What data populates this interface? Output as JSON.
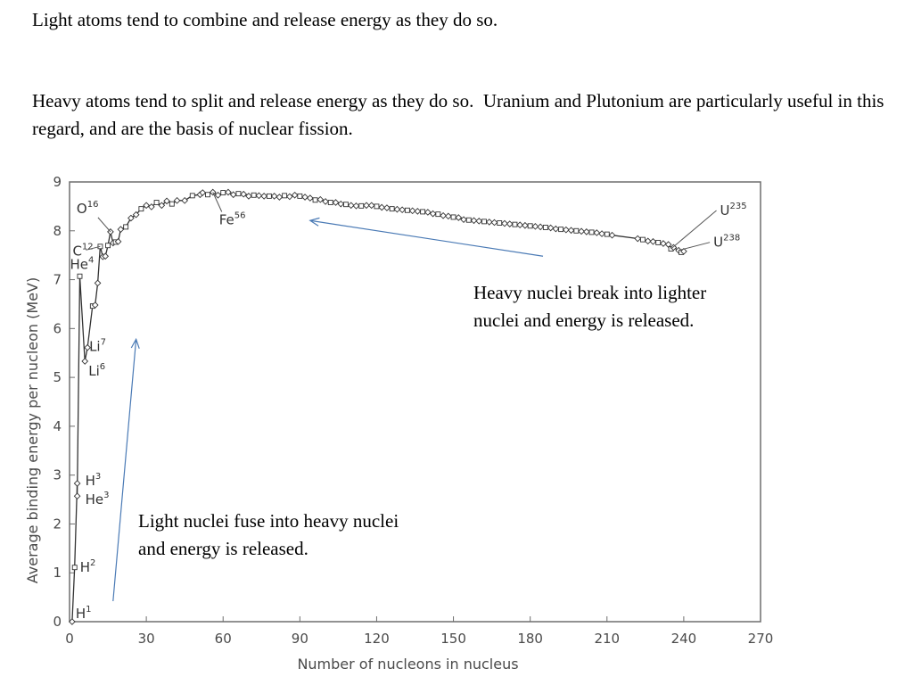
{
  "text": {
    "intro_light": "Light atoms tend to combine and release energy as they do so.",
    "intro_heavy": "Heavy atoms tend to split and release energy as they do so.  Uranium and Plutonium are particularly useful in this regard, and are the basis of nuclear fission.",
    "annotation_heavy": "Heavy nuclei break into lighter nuclei and energy is released.",
    "annotation_light": "Light nuclei fuse into heavy nuclei and energy is released."
  },
  "chart_data": {
    "type": "line",
    "title": "",
    "xlabel": "Number of nucleons in nucleus",
    "ylabel": "Average binding energy per nucleon (MeV)",
    "xlim": [
      0,
      270
    ],
    "ylim": [
      0,
      9
    ],
    "xticks": [
      0,
      30,
      60,
      90,
      120,
      150,
      180,
      210,
      240,
      270
    ],
    "yticks": [
      0,
      1,
      2,
      3,
      4,
      5,
      6,
      7,
      8,
      9
    ],
    "grid": false,
    "line_color": "#333333",
    "arrow_color": "#4a7ab5",
    "series": [
      {
        "points": [
          [
            1,
            0
          ],
          [
            2,
            1.11
          ],
          [
            3,
            2.83
          ],
          [
            3,
            2.57
          ],
          [
            4,
            7.07
          ],
          [
            6,
            5.33
          ],
          [
            7,
            5.61
          ],
          [
            9,
            6.46
          ],
          [
            10,
            6.48
          ],
          [
            11,
            6.93
          ],
          [
            12,
            7.68
          ],
          [
            13,
            7.47
          ],
          [
            14,
            7.48
          ],
          [
            15,
            7.7
          ],
          [
            16,
            7.98
          ],
          [
            17,
            7.75
          ],
          [
            18,
            7.77
          ],
          [
            19,
            7.78
          ],
          [
            20,
            8.03
          ],
          [
            22,
            8.08
          ],
          [
            24,
            8.26
          ],
          [
            26,
            8.33
          ],
          [
            28,
            8.45
          ],
          [
            30,
            8.52
          ],
          [
            32,
            8.49
          ],
          [
            34,
            8.58
          ],
          [
            36,
            8.52
          ],
          [
            38,
            8.61
          ],
          [
            40,
            8.55
          ],
          [
            42,
            8.62
          ],
          [
            45,
            8.62
          ],
          [
            48,
            8.72
          ],
          [
            51,
            8.74
          ],
          [
            52,
            8.78
          ],
          [
            54,
            8.74
          ],
          [
            56,
            8.79
          ],
          [
            58,
            8.73
          ],
          [
            60,
            8.78
          ],
          [
            62,
            8.79
          ],
          [
            64,
            8.74
          ],
          [
            66,
            8.76
          ],
          [
            68,
            8.75
          ],
          [
            70,
            8.71
          ],
          [
            72,
            8.73
          ],
          [
            74,
            8.72
          ],
          [
            76,
            8.71
          ],
          [
            78,
            8.71
          ],
          [
            80,
            8.71
          ],
          [
            82,
            8.69
          ],
          [
            84,
            8.72
          ],
          [
            86,
            8.7
          ],
          [
            88,
            8.73
          ],
          [
            90,
            8.71
          ],
          [
            92,
            8.69
          ],
          [
            94,
            8.67
          ],
          [
            96,
            8.63
          ],
          [
            98,
            8.64
          ],
          [
            100,
            8.6
          ],
          [
            102,
            8.58
          ],
          [
            104,
            8.58
          ],
          [
            106,
            8.55
          ],
          [
            108,
            8.54
          ],
          [
            110,
            8.52
          ],
          [
            112,
            8.51
          ],
          [
            114,
            8.51
          ],
          [
            116,
            8.52
          ],
          [
            118,
            8.52
          ],
          [
            120,
            8.5
          ],
          [
            122,
            8.48
          ],
          [
            124,
            8.47
          ],
          [
            126,
            8.45
          ],
          [
            128,
            8.44
          ],
          [
            130,
            8.43
          ],
          [
            132,
            8.42
          ],
          [
            134,
            8.41
          ],
          [
            136,
            8.4
          ],
          [
            138,
            8.39
          ],
          [
            140,
            8.38
          ],
          [
            142,
            8.35
          ],
          [
            144,
            8.34
          ],
          [
            146,
            8.31
          ],
          [
            148,
            8.3
          ],
          [
            150,
            8.28
          ],
          [
            152,
            8.27
          ],
          [
            154,
            8.23
          ],
          [
            156,
            8.22
          ],
          [
            158,
            8.21
          ],
          [
            160,
            8.2
          ],
          [
            162,
            8.19
          ],
          [
            164,
            8.18
          ],
          [
            166,
            8.17
          ],
          [
            168,
            8.16
          ],
          [
            170,
            8.15
          ],
          [
            172,
            8.14
          ],
          [
            174,
            8.13
          ],
          [
            176,
            8.12
          ],
          [
            178,
            8.11
          ],
          [
            180,
            8.1
          ],
          [
            182,
            8.09
          ],
          [
            184,
            8.08
          ],
          [
            186,
            8.07
          ],
          [
            188,
            8.06
          ],
          [
            190,
            8.04
          ],
          [
            192,
            8.03
          ],
          [
            194,
            8.02
          ],
          [
            196,
            8.01
          ],
          [
            198,
            8.0
          ],
          [
            200,
            7.99
          ],
          [
            202,
            7.98
          ],
          [
            204,
            7.97
          ],
          [
            206,
            7.96
          ],
          [
            208,
            7.94
          ],
          [
            210,
            7.93
          ],
          [
            212,
            7.91
          ],
          [
            222,
            7.84
          ],
          [
            224,
            7.82
          ],
          [
            226,
            7.79
          ],
          [
            228,
            7.78
          ],
          [
            230,
            7.76
          ],
          [
            232,
            7.74
          ],
          [
            234,
            7.72
          ],
          [
            235,
            7.63
          ],
          [
            236,
            7.66
          ],
          [
            238,
            7.6
          ],
          [
            239,
            7.56
          ],
          [
            240,
            7.58
          ]
        ]
      }
    ],
    "labels": [
      {
        "id": "h1",
        "text": "H",
        "sup": "1",
        "x": 1,
        "y": 0
      },
      {
        "id": "h2",
        "text": "H",
        "sup": "2",
        "x": 2,
        "y": 1.11
      },
      {
        "id": "h3",
        "text": "H",
        "sup": "3",
        "x": 3,
        "y": 2.83
      },
      {
        "id": "he3",
        "text": "He",
        "sup": "3",
        "x": 3,
        "y": 2.57
      },
      {
        "id": "he4",
        "text": "He",
        "sup": "4",
        "x": 4,
        "y": 7.07
      },
      {
        "id": "li6",
        "text": "Li",
        "sup": "6",
        "x": 6,
        "y": 5.33
      },
      {
        "id": "li7",
        "text": "Li",
        "sup": "7",
        "x": 7,
        "y": 5.61
      },
      {
        "id": "c12",
        "text": "C",
        "sup": "12",
        "x": 12,
        "y": 7.68
      },
      {
        "id": "o16",
        "text": "O",
        "sup": "16",
        "x": 16,
        "y": 7.98
      },
      {
        "id": "fe56",
        "text": "Fe",
        "sup": "56",
        "x": 56,
        "y": 8.79
      },
      {
        "id": "u235",
        "text": "U",
        "sup": "235",
        "x": 235,
        "y": 7.63
      },
      {
        "id": "u238",
        "text": "U",
        "sup": "238",
        "x": 238,
        "y": 7.6
      }
    ],
    "arrows": [
      {
        "id": "fission",
        "from": [
          185,
          7.48
        ],
        "to": [
          94,
          8.21
        ]
      },
      {
        "id": "fusion",
        "from": [
          17,
          0.42
        ],
        "to": [
          26,
          5.78
        ]
      }
    ]
  }
}
